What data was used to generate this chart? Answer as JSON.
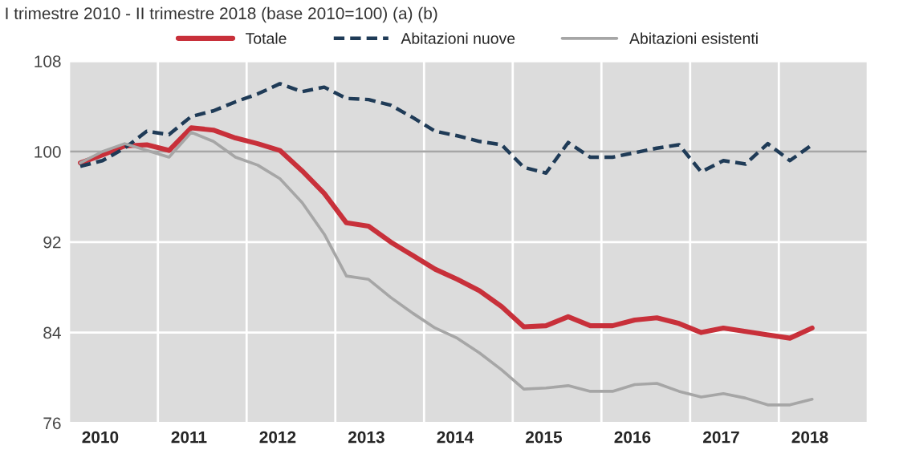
{
  "chart_data": {
    "type": "line",
    "title": "I trimestre 2010 - II trimestre 2018 (base 2010=100) (a) (b)",
    "x": [
      2010.125,
      2010.375,
      2010.625,
      2010.875,
      2011.125,
      2011.375,
      2011.625,
      2011.875,
      2012.125,
      2012.375,
      2012.625,
      2012.875,
      2013.125,
      2013.375,
      2013.625,
      2013.875,
      2014.125,
      2014.375,
      2014.625,
      2014.875,
      2015.125,
      2015.375,
      2015.625,
      2015.875,
      2016.125,
      2016.375,
      2016.625,
      2016.875,
      2017.125,
      2017.375,
      2017.625,
      2017.875,
      2018.125,
      2018.375
    ],
    "series": [
      {
        "name": "Totale",
        "color": "#c8303a",
        "line_style": "solid",
        "values": [
          99.0,
          99.7,
          100.5,
          100.6,
          100.1,
          102.1,
          101.9,
          101.2,
          100.7,
          100.1,
          98.3,
          96.3,
          93.7,
          93.4,
          92.0,
          90.8,
          89.6,
          88.7,
          87.7,
          86.3,
          84.5,
          84.6,
          85.4,
          84.6,
          84.6,
          85.1,
          85.3,
          84.8,
          84.0,
          84.4,
          84.1,
          83.8,
          83.5,
          84.4
        ]
      },
      {
        "name": "Abitazioni nuove",
        "color": "#1f3b57",
        "line_style": "dashed",
        "values": [
          98.7,
          99.2,
          100.3,
          101.8,
          101.5,
          103.1,
          103.6,
          104.4,
          105.1,
          106.0,
          105.3,
          105.7,
          104.7,
          104.6,
          104.1,
          103.0,
          101.8,
          101.4,
          100.9,
          100.6,
          98.6,
          98.1,
          100.8,
          99.5,
          99.5,
          99.9,
          100.3,
          100.6,
          98.2,
          99.2,
          98.9,
          100.7,
          99.2,
          100.6
        ]
      },
      {
        "name": "Abitazioni esistenti",
        "color": "#a6a6a6",
        "line_style": "solid",
        "values": [
          99.0,
          100.0,
          100.7,
          100.1,
          99.5,
          101.7,
          100.9,
          99.5,
          98.8,
          97.6,
          95.5,
          92.7,
          89.0,
          88.7,
          87.1,
          85.7,
          84.4,
          83.5,
          82.2,
          80.7,
          79.0,
          79.1,
          79.3,
          78.8,
          78.8,
          79.4,
          79.5,
          78.8,
          78.3,
          78.6,
          78.2,
          77.6,
          77.6,
          78.1
        ]
      }
    ],
    "xlim": [
      2010,
      2019
    ],
    "xticks": [
      {
        "value": 2010.35,
        "label": "2010"
      },
      {
        "value": 2011.35,
        "label": "2011"
      },
      {
        "value": 2012.35,
        "label": "2012"
      },
      {
        "value": 2013.35,
        "label": "2013"
      },
      {
        "value": 2014.35,
        "label": "2014"
      },
      {
        "value": 2015.35,
        "label": "2015"
      },
      {
        "value": 2016.35,
        "label": "2016"
      },
      {
        "value": 2017.35,
        "label": "2017"
      },
      {
        "value": 2018.35,
        "label": "2018"
      }
    ],
    "ylim": [
      76,
      108
    ],
    "yticks": [
      76,
      84,
      92,
      100,
      108
    ],
    "grid": "y",
    "ref_lines": [
      {
        "axis": "y",
        "value": 100,
        "color": "#a6a6a6"
      },
      {
        "axis": "x",
        "value": 2011,
        "color": "#ffffff"
      },
      {
        "axis": "x",
        "value": 2012,
        "color": "#ffffff"
      },
      {
        "axis": "x",
        "value": 2013,
        "color": "#ffffff"
      },
      {
        "axis": "x",
        "value": 2014,
        "color": "#ffffff"
      },
      {
        "axis": "x",
        "value": 2015,
        "color": "#ffffff"
      },
      {
        "axis": "x",
        "value": 2016,
        "color": "#ffffff"
      },
      {
        "axis": "x",
        "value": 2017,
        "color": "#ffffff"
      },
      {
        "axis": "x",
        "value": 2018,
        "color": "#ffffff"
      }
    ],
    "legend": "top",
    "marker": "none"
  }
}
